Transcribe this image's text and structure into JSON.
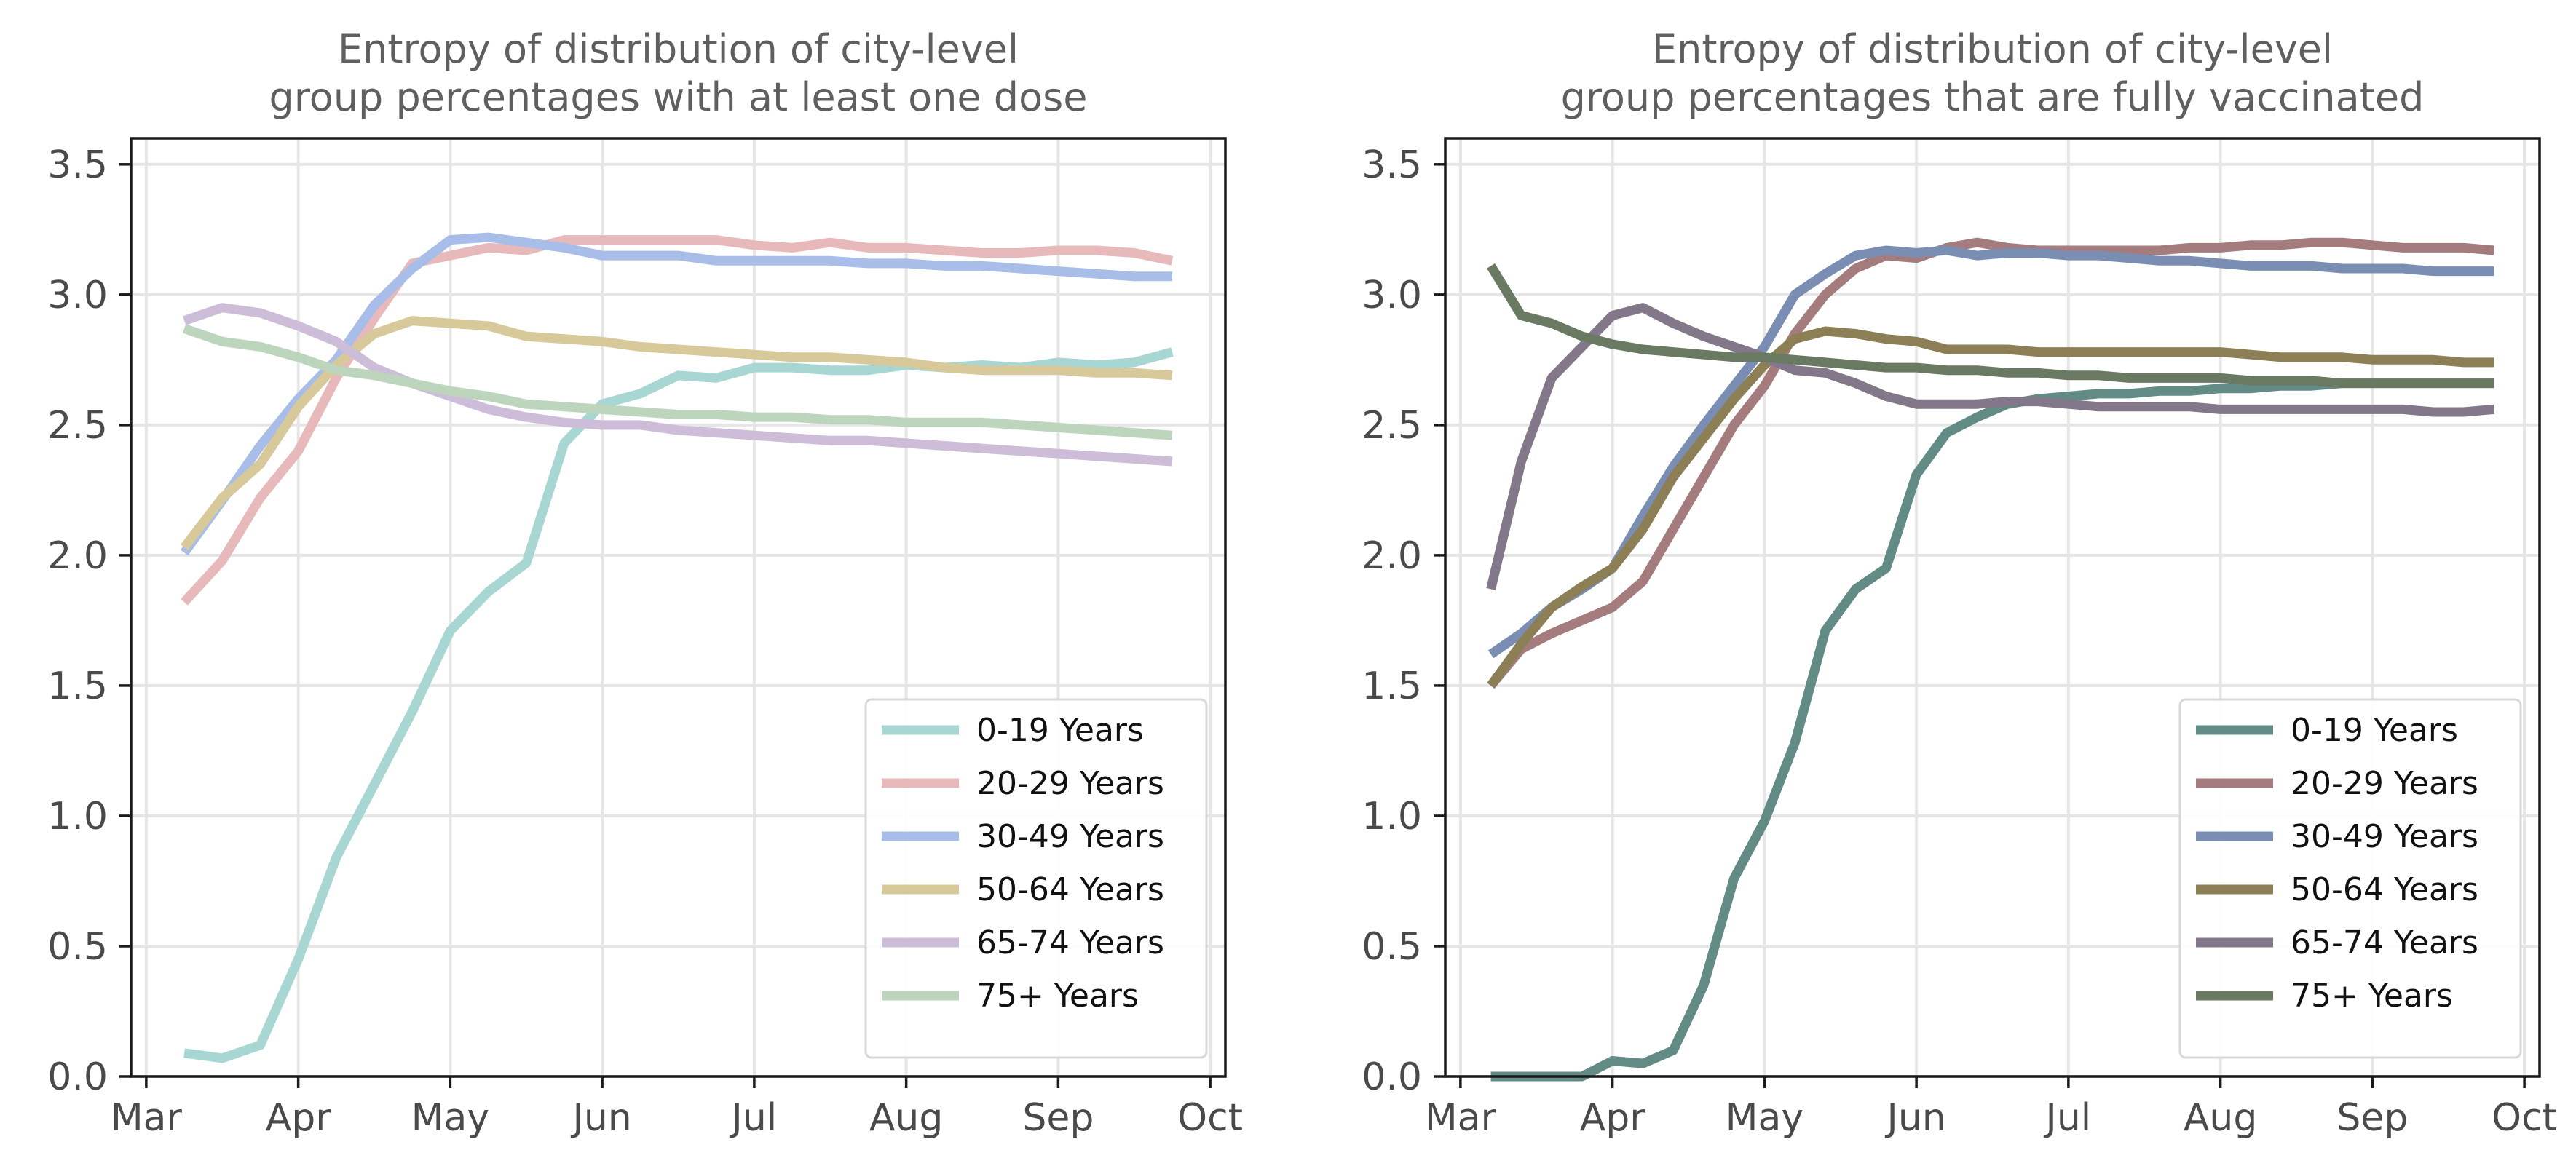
{
  "chart_data": [
    {
      "type": "line",
      "title_lines": [
        "Entropy of distribution of city-level",
        "group percentages with at least one dose"
      ],
      "xlabel": "",
      "ylabel": "",
      "x_tick_labels": [
        "Mar",
        "Apr",
        "May",
        "Jun",
        "Jul",
        "Aug",
        "Sep",
        "Oct"
      ],
      "y_tick_labels": [
        "0.0",
        "0.5",
        "1.0",
        "1.5",
        "2.0",
        "2.5",
        "3.0",
        "3.5"
      ],
      "ylim": [
        0,
        3.6
      ],
      "x_domain_months": [
        -0.1,
        7.1
      ],
      "grid": true,
      "legend_position": "lower right",
      "series": [
        {
          "name": "0-19 Years",
          "color": "#a7d6d3",
          "x": [
            0.25,
            0.5,
            0.75,
            1.0,
            1.25,
            1.5,
            1.75,
            2.0,
            2.25,
            2.5,
            2.75,
            3.0,
            3.25,
            3.5,
            3.75,
            4.0,
            4.25,
            4.5,
            4.75,
            5.0,
            5.25,
            5.5,
            5.75,
            6.0,
            6.25,
            6.5,
            6.75
          ],
          "y": [
            0.09,
            0.07,
            0.12,
            0.45,
            0.84,
            1.12,
            1.4,
            1.71,
            1.86,
            1.97,
            2.43,
            2.58,
            2.62,
            2.69,
            2.68,
            2.72,
            2.72,
            2.71,
            2.71,
            2.73,
            2.72,
            2.73,
            2.72,
            2.74,
            2.73,
            2.74,
            2.78
          ]
        },
        {
          "name": "20-29 Years",
          "color": "#e8b9bb",
          "x": [
            0.25,
            0.5,
            0.75,
            1.0,
            1.25,
            1.5,
            1.75,
            2.0,
            2.25,
            2.5,
            2.75,
            3.0,
            3.25,
            3.5,
            3.75,
            4.0,
            4.25,
            4.5,
            4.75,
            5.0,
            5.25,
            5.5,
            5.75,
            6.0,
            6.25,
            6.5,
            6.75
          ],
          "y": [
            1.82,
            1.98,
            2.22,
            2.4,
            2.68,
            2.91,
            3.12,
            3.15,
            3.18,
            3.17,
            3.21,
            3.21,
            3.21,
            3.21,
            3.21,
            3.19,
            3.18,
            3.2,
            3.18,
            3.18,
            3.17,
            3.16,
            3.16,
            3.17,
            3.17,
            3.16,
            3.13
          ]
        },
        {
          "name": "30-49 Years",
          "color": "#a8bde8",
          "x": [
            0.25,
            0.5,
            0.75,
            1.0,
            1.25,
            1.5,
            1.75,
            2.0,
            2.25,
            2.5,
            2.75,
            3.0,
            3.25,
            3.5,
            3.75,
            4.0,
            4.25,
            4.5,
            4.75,
            5.0,
            5.25,
            5.5,
            5.75,
            6.0,
            6.25,
            6.5,
            6.75
          ],
          "y": [
            2.01,
            2.21,
            2.42,
            2.6,
            2.75,
            2.96,
            3.1,
            3.21,
            3.22,
            3.2,
            3.18,
            3.15,
            3.15,
            3.15,
            3.13,
            3.13,
            3.13,
            3.13,
            3.12,
            3.12,
            3.11,
            3.11,
            3.1,
            3.09,
            3.08,
            3.07,
            3.07
          ]
        },
        {
          "name": "50-64 Years",
          "color": "#d7c99a",
          "x": [
            0.25,
            0.5,
            0.75,
            1.0,
            1.25,
            1.5,
            1.75,
            2.0,
            2.25,
            2.5,
            2.75,
            3.0,
            3.25,
            3.5,
            3.75,
            4.0,
            4.25,
            4.5,
            4.75,
            5.0,
            5.25,
            5.5,
            5.75,
            6.0,
            6.25,
            6.5,
            6.75
          ],
          "y": [
            2.03,
            2.22,
            2.35,
            2.57,
            2.73,
            2.85,
            2.9,
            2.89,
            2.88,
            2.84,
            2.83,
            2.82,
            2.8,
            2.79,
            2.78,
            2.77,
            2.76,
            2.76,
            2.75,
            2.74,
            2.72,
            2.71,
            2.71,
            2.71,
            2.7,
            2.7,
            2.69
          ]
        },
        {
          "name": "65-74 Years",
          "color": "#cdbdd9",
          "x": [
            0.25,
            0.5,
            0.75,
            1.0,
            1.25,
            1.5,
            1.75,
            2.0,
            2.25,
            2.5,
            2.75,
            3.0,
            3.25,
            3.5,
            3.75,
            4.0,
            4.25,
            4.5,
            4.75,
            5.0,
            5.25,
            5.5,
            5.75,
            6.0,
            6.25,
            6.5,
            6.75
          ],
          "y": [
            2.9,
            2.95,
            2.93,
            2.88,
            2.82,
            2.72,
            2.66,
            2.61,
            2.56,
            2.53,
            2.51,
            2.5,
            2.5,
            2.48,
            2.47,
            2.46,
            2.45,
            2.44,
            2.44,
            2.43,
            2.42,
            2.41,
            2.4,
            2.39,
            2.38,
            2.37,
            2.36
          ]
        },
        {
          "name": "75+ Years",
          "color": "#bdd5bd",
          "x": [
            0.25,
            0.5,
            0.75,
            1.0,
            1.25,
            1.5,
            1.75,
            2.0,
            2.25,
            2.5,
            2.75,
            3.0,
            3.25,
            3.5,
            3.75,
            4.0,
            4.25,
            4.5,
            4.75,
            5.0,
            5.25,
            5.5,
            5.75,
            6.0,
            6.25,
            6.5,
            6.75
          ],
          "y": [
            2.87,
            2.82,
            2.8,
            2.76,
            2.71,
            2.69,
            2.66,
            2.63,
            2.61,
            2.58,
            2.57,
            2.56,
            2.55,
            2.54,
            2.54,
            2.53,
            2.53,
            2.52,
            2.52,
            2.51,
            2.51,
            2.51,
            2.5,
            2.49,
            2.48,
            2.47,
            2.46
          ]
        }
      ]
    },
    {
      "type": "line",
      "title_lines": [
        "Entropy of distribution of city-level",
        "group percentages that are fully vaccinated"
      ],
      "xlabel": "",
      "ylabel": "",
      "x_tick_labels": [
        "Mar",
        "Apr",
        "May",
        "Jun",
        "Jul",
        "Aug",
        "Sep",
        "Oct"
      ],
      "y_tick_labels": [
        "0.0",
        "0.5",
        "1.0",
        "1.5",
        "2.0",
        "2.5",
        "3.0",
        "3.5"
      ],
      "ylim": [
        0,
        3.6
      ],
      "x_domain_months": [
        -0.1,
        7.1
      ],
      "grid": true,
      "legend_position": "lower right",
      "series": [
        {
          "name": "0-19 Years",
          "color": "#628b86",
          "x": [
            0.2,
            0.4,
            0.6,
            0.8,
            1.0,
            1.2,
            1.4,
            1.6,
            1.8,
            2.0,
            2.2,
            2.4,
            2.6,
            2.8,
            3.0,
            3.2,
            3.4,
            3.6,
            3.8,
            4.0,
            4.2,
            4.4,
            4.6,
            4.8,
            5.0,
            5.2,
            5.4,
            5.6,
            5.8,
            6.0,
            6.2,
            6.4,
            6.6,
            6.8
          ],
          "y": [
            0.0,
            0.0,
            0.0,
            0.0,
            0.06,
            0.05,
            0.1,
            0.35,
            0.76,
            0.98,
            1.28,
            1.71,
            1.87,
            1.95,
            2.31,
            2.47,
            2.53,
            2.58,
            2.6,
            2.61,
            2.62,
            2.62,
            2.63,
            2.63,
            2.64,
            2.64,
            2.65,
            2.65,
            2.66,
            2.66,
            2.66,
            2.66,
            2.66,
            2.66
          ]
        },
        {
          "name": "20-29 Years",
          "color": "#a57c7e",
          "x": [
            0.2,
            0.4,
            0.6,
            0.8,
            1.0,
            1.2,
            1.4,
            1.6,
            1.8,
            2.0,
            2.2,
            2.4,
            2.6,
            2.8,
            3.0,
            3.2,
            3.4,
            3.6,
            3.8,
            4.0,
            4.2,
            4.4,
            4.6,
            4.8,
            5.0,
            5.2,
            5.4,
            5.6,
            5.8,
            6.0,
            6.2,
            6.4,
            6.6,
            6.8
          ],
          "y": [
            1.5,
            1.64,
            1.7,
            1.75,
            1.8,
            1.9,
            2.1,
            2.3,
            2.5,
            2.65,
            2.85,
            3.0,
            3.1,
            3.15,
            3.14,
            3.18,
            3.2,
            3.18,
            3.17,
            3.17,
            3.17,
            3.17,
            3.17,
            3.18,
            3.18,
            3.19,
            3.19,
            3.2,
            3.2,
            3.19,
            3.18,
            3.18,
            3.18,
            3.17
          ]
        },
        {
          "name": "30-49 Years",
          "color": "#7a8db3",
          "x": [
            0.2,
            0.4,
            0.6,
            0.8,
            1.0,
            1.2,
            1.4,
            1.6,
            1.8,
            2.0,
            2.2,
            2.4,
            2.6,
            2.8,
            3.0,
            3.2,
            3.4,
            3.6,
            3.8,
            4.0,
            4.2,
            4.4,
            4.6,
            4.8,
            5.0,
            5.2,
            5.4,
            5.6,
            5.8,
            6.0,
            6.2,
            6.4,
            6.6,
            6.8
          ],
          "y": [
            1.62,
            1.7,
            1.8,
            1.87,
            1.95,
            2.15,
            2.34,
            2.5,
            2.65,
            2.8,
            3.0,
            3.08,
            3.15,
            3.17,
            3.16,
            3.17,
            3.15,
            3.16,
            3.16,
            3.15,
            3.15,
            3.14,
            3.13,
            3.13,
            3.12,
            3.11,
            3.11,
            3.11,
            3.1,
            3.1,
            3.1,
            3.09,
            3.09,
            3.09
          ]
        },
        {
          "name": "50-64 Years",
          "color": "#8d7f55",
          "x": [
            0.2,
            0.4,
            0.6,
            0.8,
            1.0,
            1.2,
            1.4,
            1.6,
            1.8,
            2.0,
            2.2,
            2.4,
            2.6,
            2.8,
            3.0,
            3.2,
            3.4,
            3.6,
            3.8,
            4.0,
            4.2,
            4.4,
            4.6,
            4.8,
            5.0,
            5.2,
            5.4,
            5.6,
            5.8,
            6.0,
            6.2,
            6.4,
            6.6,
            6.8
          ],
          "y": [
            1.5,
            1.66,
            1.8,
            1.88,
            1.95,
            2.1,
            2.3,
            2.45,
            2.6,
            2.73,
            2.83,
            2.86,
            2.85,
            2.83,
            2.82,
            2.79,
            2.79,
            2.79,
            2.78,
            2.78,
            2.78,
            2.78,
            2.78,
            2.78,
            2.78,
            2.77,
            2.76,
            2.76,
            2.76,
            2.75,
            2.75,
            2.75,
            2.74,
            2.74
          ]
        },
        {
          "name": "65-74 Years",
          "color": "#837889",
          "x": [
            0.2,
            0.4,
            0.6,
            0.8,
            1.0,
            1.2,
            1.4,
            1.6,
            1.8,
            2.0,
            2.2,
            2.4,
            2.6,
            2.8,
            3.0,
            3.2,
            3.4,
            3.6,
            3.8,
            4.0,
            4.2,
            4.4,
            4.6,
            4.8,
            5.0,
            5.2,
            5.4,
            5.6,
            5.8,
            6.0,
            6.2,
            6.4,
            6.6,
            6.8
          ],
          "y": [
            1.87,
            2.36,
            2.68,
            2.8,
            2.92,
            2.95,
            2.89,
            2.84,
            2.8,
            2.76,
            2.71,
            2.7,
            2.66,
            2.61,
            2.58,
            2.58,
            2.58,
            2.59,
            2.59,
            2.58,
            2.57,
            2.57,
            2.57,
            2.57,
            2.56,
            2.56,
            2.56,
            2.56,
            2.56,
            2.56,
            2.56,
            2.55,
            2.55,
            2.56
          ]
        },
        {
          "name": "75+ Years",
          "color": "#6a7a62",
          "x": [
            0.2,
            0.4,
            0.6,
            0.8,
            1.0,
            1.2,
            1.4,
            1.6,
            1.8,
            2.0,
            2.2,
            2.4,
            2.6,
            2.8,
            3.0,
            3.2,
            3.4,
            3.6,
            3.8,
            4.0,
            4.2,
            4.4,
            4.6,
            4.8,
            5.0,
            5.2,
            5.4,
            5.6,
            5.8,
            6.0,
            6.2,
            6.4,
            6.6,
            6.8
          ],
          "y": [
            3.11,
            2.92,
            2.89,
            2.84,
            2.81,
            2.79,
            2.78,
            2.77,
            2.76,
            2.76,
            2.75,
            2.74,
            2.73,
            2.72,
            2.72,
            2.71,
            2.71,
            2.7,
            2.7,
            2.69,
            2.69,
            2.68,
            2.68,
            2.68,
            2.68,
            2.67,
            2.67,
            2.67,
            2.66,
            2.66,
            2.66,
            2.66,
            2.66,
            2.66
          ]
        }
      ]
    }
  ]
}
